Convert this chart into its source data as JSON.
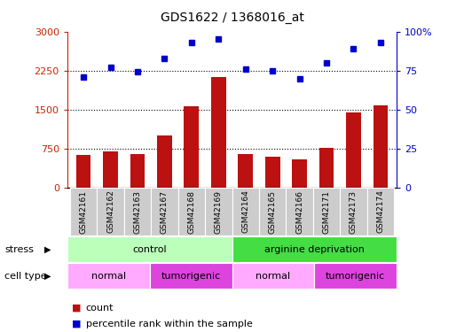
{
  "title": "GDS1622 / 1368016_at",
  "samples": [
    "GSM42161",
    "GSM42162",
    "GSM42163",
    "GSM42167",
    "GSM42168",
    "GSM42169",
    "GSM42164",
    "GSM42165",
    "GSM42166",
    "GSM42171",
    "GSM42173",
    "GSM42174"
  ],
  "counts": [
    620,
    690,
    650,
    1000,
    1570,
    2130,
    650,
    590,
    545,
    770,
    1450,
    1580
  ],
  "percentiles": [
    71,
    77,
    74,
    83,
    93,
    95,
    76,
    75,
    70,
    80,
    89,
    93
  ],
  "ylim_left": [
    0,
    3000
  ],
  "ylim_right": [
    0,
    100
  ],
  "yticks_left": [
    0,
    750,
    1500,
    2250,
    3000
  ],
  "yticks_right": [
    0,
    25,
    50,
    75,
    100
  ],
  "ytick_labels_left": [
    "0",
    "750",
    "1500",
    "2250",
    "3000"
  ],
  "ytick_labels_right": [
    "0",
    "25",
    "50",
    "75",
    "100%"
  ],
  "bar_color": "#bb1111",
  "dot_color": "#0000cc",
  "stress_groups": [
    {
      "label": "control",
      "start": 0,
      "end": 6,
      "color": "#bbffbb"
    },
    {
      "label": "arginine deprivation",
      "start": 6,
      "end": 12,
      "color": "#44dd44"
    }
  ],
  "cell_type_groups": [
    {
      "label": "normal",
      "start": 0,
      "end": 3,
      "color": "#ffaaff"
    },
    {
      "label": "tumorigenic",
      "start": 3,
      "end": 6,
      "color": "#dd44dd"
    },
    {
      "label": "normal",
      "start": 6,
      "end": 9,
      "color": "#ffaaff"
    },
    {
      "label": "tumorigenic",
      "start": 9,
      "end": 12,
      "color": "#dd44dd"
    }
  ],
  "stress_label": "stress",
  "cell_type_label": "cell type",
  "legend_count": "count",
  "legend_percentile": "percentile rank within the sample",
  "left_axis_color": "#cc2200",
  "right_axis_color": "#0000cc",
  "sample_bg_color": "#cccccc",
  "grid_hlines": [
    750,
    1500,
    2250
  ]
}
